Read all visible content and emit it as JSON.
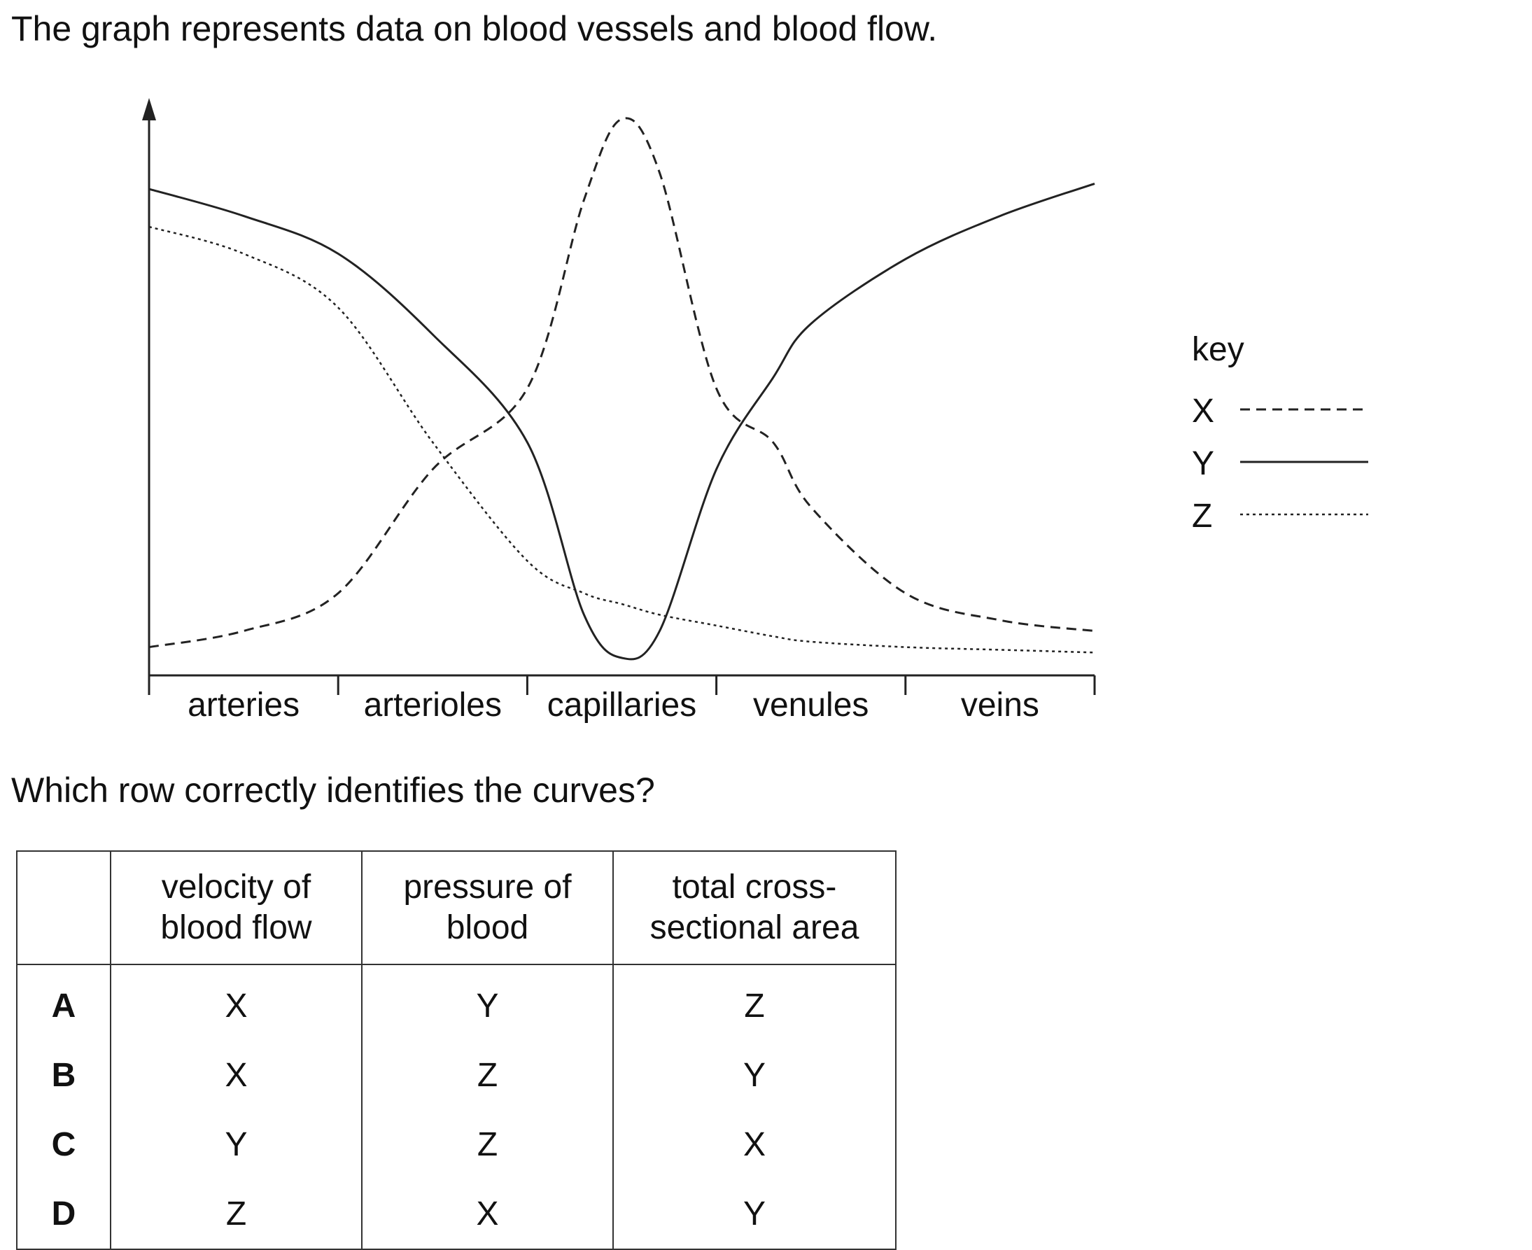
{
  "intro_text": "The graph represents data on blood vessels and blood flow.",
  "question_text": "Which row correctly identifies the curves?",
  "chart_data": {
    "type": "line",
    "title": "",
    "xlabel": "",
    "ylabel": "",
    "categories": [
      "arteries",
      "arterioles",
      "capillaries",
      "venules",
      "veins"
    ],
    "ylim": [
      0,
      100
    ],
    "x": [
      0,
      0.5,
      1,
      1.5,
      2,
      2.3,
      2.5,
      2.7,
      3,
      3.3,
      3.5,
      4,
      4.5,
      5
    ],
    "series": [
      {
        "name": "X",
        "style": "dashed",
        "values": [
          2,
          5,
          12,
          35,
          50,
          85,
          100,
          90,
          50,
          40,
          28,
          12,
          7,
          5
        ]
      },
      {
        "name": "Y",
        "style": "solid",
        "values": [
          87,
          82,
          75,
          60,
          40,
          8,
          0,
          5,
          35,
          52,
          62,
          74,
          82,
          88
        ]
      },
      {
        "name": "Z",
        "style": "dotted",
        "values": [
          80,
          75,
          65,
          40,
          18,
          12,
          10,
          8,
          6,
          4,
          3,
          2,
          1.5,
          1
        ]
      }
    ],
    "legend_title": "key",
    "legend_position": "right",
    "grid": false
  },
  "table": {
    "headers": [
      "",
      "velocity of blood flow",
      "pressure of blood",
      "total cross-sectional area"
    ],
    "header_lines": [
      [
        "",
        ""
      ],
      [
        "velocity of",
        "blood flow"
      ],
      [
        "pressure of",
        "blood"
      ],
      [
        "total cross-",
        "sectional area"
      ]
    ],
    "rows": [
      [
        "A",
        "X",
        "Y",
        "Z"
      ],
      [
        "B",
        "X",
        "Z",
        "Y"
      ],
      [
        "C",
        "Y",
        "Z",
        "X"
      ],
      [
        "D",
        "Z",
        "X",
        "Y"
      ]
    ]
  }
}
